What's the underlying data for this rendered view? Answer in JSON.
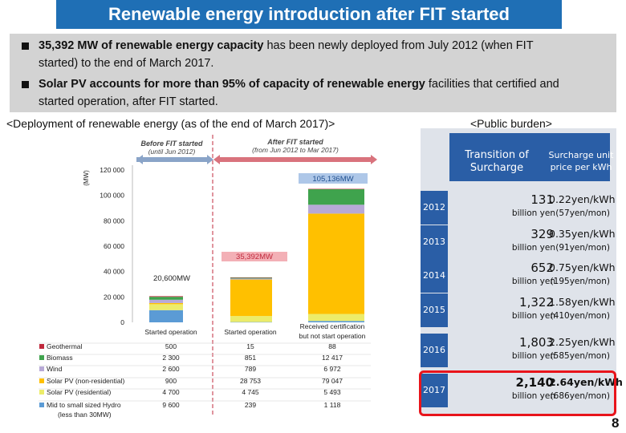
{
  "title": "Renewable energy introduction after FIT started",
  "summary": {
    "bullet1_bold": "35,392 MW of renewable energy capacity",
    "bullet1_rest": " has been newly deployed from July 2012 (when FIT",
    "bullet1_line2": "started) to the end of March 2017.",
    "bullet2_bold": "Solar PV accounts for more than 95% of capacity of renewable energy",
    "bullet2_rest": " facilities that certified and",
    "bullet2_line2": "started operation, after FIT started."
  },
  "left_subtitle": "<Deployment of renewable energy (as of the end of March 2017)>",
  "right_subtitle": "<Public burden>",
  "chart_data": {
    "type": "bar",
    "stacked": true,
    "ylabel": "(MW)",
    "ylim": [
      0,
      120000
    ],
    "yticks": [
      "0",
      "20 000",
      "40 000",
      "60 000",
      "80 000",
      "100 000",
      "120 000"
    ],
    "ytick_values": [
      0,
      20000,
      40000,
      60000,
      80000,
      100000,
      120000
    ],
    "categories": [
      "Started operation",
      "Started operation",
      "Received certification but not start operation"
    ],
    "category_line1": [
      "Started operation",
      "Started operation",
      "Received certification"
    ],
    "category_line2": [
      "",
      "",
      "but not start operation"
    ],
    "period_labels": {
      "before_line1": "Before FIT started",
      "before_line2": "(until Jun 2012)",
      "after_line1": "After FIT started",
      "after_line2": "(from Jun 2012 to Mar 2017)"
    },
    "annotations": {
      "total_before": "20,600MW",
      "total_after": "35,392MW",
      "total_certified": "105,136MW"
    },
    "series": [
      {
        "name": "Geothermal",
        "color": "#c0283c",
        "values": [
          500,
          15,
          88
        ],
        "labels": [
          "500",
          "15",
          "88"
        ]
      },
      {
        "name": "Biomass",
        "color": "#3fa34d",
        "values": [
          2300,
          851,
          12417
        ],
        "labels": [
          "2 300",
          "851",
          "12 417"
        ]
      },
      {
        "name": "Wind",
        "color": "#b7a9d6",
        "values": [
          2600,
          789,
          6972
        ],
        "labels": [
          "2 600",
          "789",
          "6 972"
        ]
      },
      {
        "name": "Solar PV (non-residential)",
        "color": "#ffc000",
        "values": [
          900,
          28753,
          79047
        ],
        "labels": [
          "900",
          "28 753",
          "79 047"
        ]
      },
      {
        "name": "Solar PV (residential)",
        "color": "#ecec6a",
        "values": [
          4700,
          4745,
          5493
        ],
        "labels": [
          "4 700",
          "4 745",
          "5 493"
        ]
      },
      {
        "name": "Mid to small sized Hydro (less than 30MW)",
        "legend_line1": "Mid to small sized Hydro",
        "legend_line2": "(less than 30MW)",
        "color": "#5b9bd5",
        "values": [
          9600,
          239,
          1118
        ],
        "labels": [
          "9 600",
          "239",
          "1 118"
        ]
      }
    ]
  },
  "public_burden": {
    "header_col1_line1": "Transition of",
    "header_col1_line2": "Surcharge",
    "header_col2_line1": "Surcharge unit",
    "header_col2_line2": "price per kWh",
    "rows": [
      {
        "year": "2012",
        "surcharge": "131",
        "unit": "billion yen",
        "price": "0.22yen/kWh",
        "monthly": "(57yen/mon)"
      },
      {
        "year": "2013",
        "surcharge": "329",
        "unit": "billion yen",
        "price": "0.35yen/kWh",
        "monthly": "(91yen/mon)"
      },
      {
        "year": "2014",
        "surcharge": "652",
        "unit": "billion yen",
        "price": "0.75yen/kWh",
        "monthly": "(195yen/mon)"
      },
      {
        "year": "2015",
        "surcharge": "1,322",
        "unit": "billion yen",
        "price": "1.58yen/kWh",
        "monthly": "(410yen/mon)"
      },
      {
        "year": "2016",
        "surcharge": "1,803",
        "unit": "billion yen",
        "price": "2.25yen/kWh",
        "monthly": "(585yen/mon)"
      },
      {
        "year": "2017",
        "surcharge": "2,140",
        "unit": "billion yen",
        "price": "2.64yen/kWh",
        "monthly": "(686yen/mon)"
      }
    ],
    "highlight_color": "#e8141b"
  },
  "page_number": "8"
}
